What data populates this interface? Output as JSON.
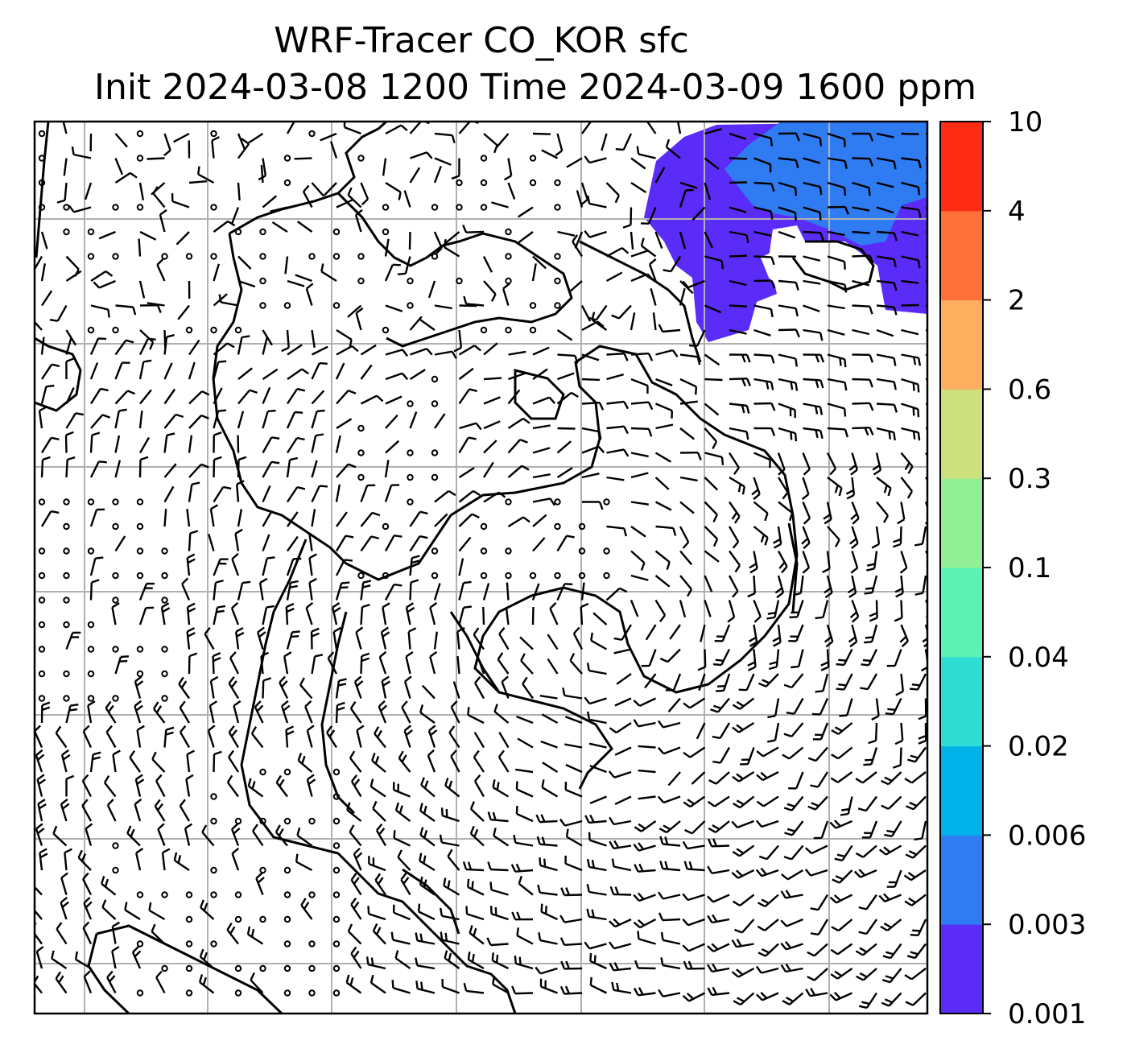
{
  "chart_data": {
    "type": "heatmap",
    "title": "WRF-Tracer CO_KOR sfc",
    "subtitle": "Init 2024-03-08 1200 Time 2024-03-09 1600 ppm",
    "colorbar": {
      "levels": [
        "0.001",
        "0.003",
        "0.006",
        "0.02",
        "0.04",
        "0.1",
        "0.3",
        "0.6",
        "2",
        "4",
        "10"
      ],
      "colors": [
        "#5b2cf7",
        "#2f7bf2",
        "#00b2e8",
        "#2fddd2",
        "#5cf2b6",
        "#91f096",
        "#cde07e",
        "#fdae5e",
        "#ff703a",
        "#ff2b15"
      ]
    },
    "field": {
      "description_levels_present": [
        "0.001-0.003",
        "0.003-0.006"
      ],
      "max_bin_color": "#2f7bf2",
      "min_bin_color": "#5b2cf7"
    },
    "wind_barbs": true,
    "grid": true,
    "coastlines": true
  }
}
